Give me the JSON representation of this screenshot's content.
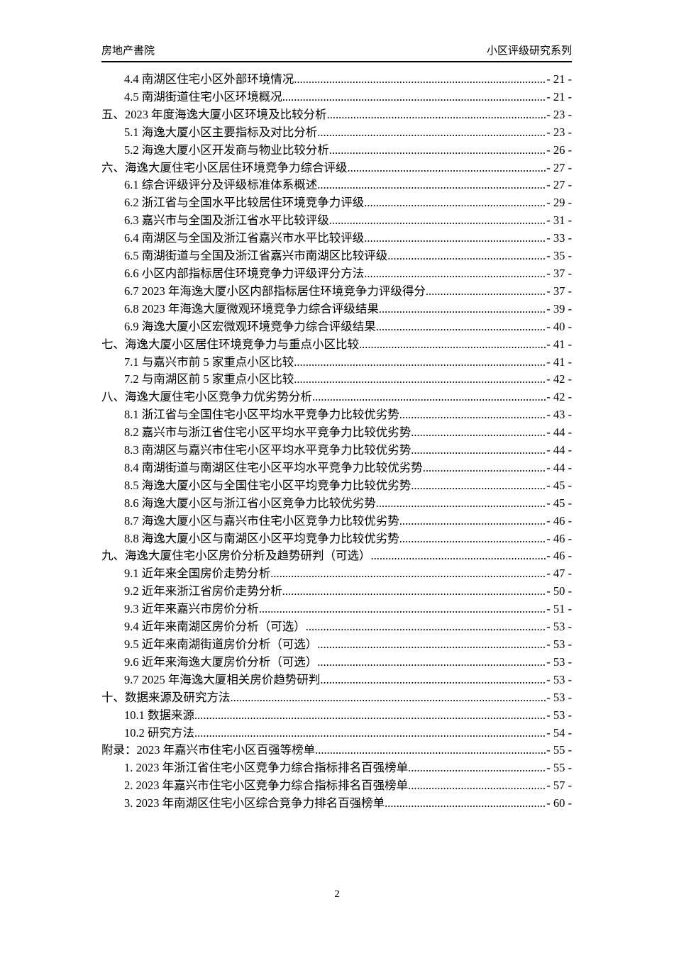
{
  "header": {
    "left_title": "房地产書院",
    "right_title": "小区评级研究系列"
  },
  "toc": {
    "entries": [
      {
        "level": 2,
        "title": "4.4 南湖区住宅小区外部环境情况",
        "page_label": "- 21 -"
      },
      {
        "level": 2,
        "title": "4.5 南湖街道住宅小区环境概况",
        "page_label": "- 21 -"
      },
      {
        "level": 1,
        "title": "五、2023 年度海逸大厦小区环境及比较分析",
        "page_label": "- 23 -"
      },
      {
        "level": 2,
        "title": "5.1 海逸大厦小区主要指标及对比分析",
        "page_label": "- 23 -"
      },
      {
        "level": 2,
        "title": "5.2 海逸大厦小区开发商与物业比较分析",
        "page_label": "- 26 -"
      },
      {
        "level": 1,
        "title": "六、海逸大厦住宅小区居住环境竞争力综合评级",
        "page_label": "- 27 -"
      },
      {
        "level": 2,
        "title": "6.1 综合评级评分及评级标准体系概述",
        "page_label": "- 27 -"
      },
      {
        "level": 2,
        "title": "6.2 浙江省与全国水平比较居住环境竞争力评级",
        "page_label": "- 29 -"
      },
      {
        "level": 2,
        "title": "6.3 嘉兴市与全国及浙江省水平比较评级",
        "page_label": "- 31 -"
      },
      {
        "level": 2,
        "title": "6.4 南湖区与全国及浙江省嘉兴市水平比较评级",
        "page_label": "- 33 -"
      },
      {
        "level": 2,
        "title": "6.5 南湖街道与全国及浙江省嘉兴市南湖区比较评级",
        "page_label": "- 35 -"
      },
      {
        "level": 2,
        "title": "6.6 小区内部指标居住环境竞争力评级评分方法",
        "page_label": "- 37 -"
      },
      {
        "level": 2,
        "title": "6.7 2023 年海逸大厦小区内部指标居住环境竞争力评级得分",
        "page_label": "- 37 -"
      },
      {
        "level": 2,
        "title": "6.8 2023 年海逸大厦微观环境竞争力综合评级结果",
        "page_label": "- 39 -"
      },
      {
        "level": 2,
        "title": "6.9 海逸大厦小区宏微观环境竞争力综合评级结果",
        "page_label": "- 40 -"
      },
      {
        "level": 1,
        "title": "七、海逸大厦小区居住环境竞争力与重点小区比较",
        "page_label": "- 41 -"
      },
      {
        "level": 2,
        "title": "7.1 与嘉兴市前 5 家重点小区比较",
        "page_label": "- 41 -"
      },
      {
        "level": 2,
        "title": "7.2 与南湖区前 5 家重点小区比较",
        "page_label": "- 42 -"
      },
      {
        "level": 1,
        "title": "八、海逸大厦住宅小区竞争力优劣势分析",
        "page_label": "- 42 -"
      },
      {
        "level": 2,
        "title": "8.1 浙江省与全国住宅小区平均水平竞争力比较优劣势",
        "page_label": "- 43 -"
      },
      {
        "level": 2,
        "title": "8.2 嘉兴市与浙江省住宅小区平均水平竞争力比较优劣势",
        "page_label": "- 44 -"
      },
      {
        "level": 2,
        "title": "8.3 南湖区与嘉兴市住宅小区平均水平竞争力比较优劣势",
        "page_label": "- 44 -"
      },
      {
        "level": 2,
        "title": "8.4 南湖街道与南湖区住宅小区平均水平竞争力比较优劣势",
        "page_label": "- 44 -"
      },
      {
        "level": 2,
        "title": "8.5 海逸大厦小区与全国住宅小区平均竞争力比较优劣势",
        "page_label": "- 45 -"
      },
      {
        "level": 2,
        "title": "8.6 海逸大厦小区与浙江省小区竞争力比较优劣势",
        "page_label": "- 45 -"
      },
      {
        "level": 2,
        "title": "8.7 海逸大厦小区与嘉兴市住宅小区竞争力比较优劣势",
        "page_label": "- 46 -"
      },
      {
        "level": 2,
        "title": "8.8 海逸大厦小区与南湖区小区平均竞争力比较优劣势",
        "page_label": "- 46 -"
      },
      {
        "level": 1,
        "title": "九、海逸大厦住宅小区房价分析及趋势研判（可选）",
        "page_label": "- 46 -"
      },
      {
        "level": 2,
        "title": "9.1 近年来全国房价走势分析",
        "page_label": "- 47 -"
      },
      {
        "level": 2,
        "title": "9.2 近年来浙江省房价走势分析",
        "page_label": "- 50 -"
      },
      {
        "level": 2,
        "title": "9.3 近年来嘉兴市房价分析",
        "page_label": "- 51 -"
      },
      {
        "level": 2,
        "title": "9.4 近年来南湖区房价分析（可选）",
        "page_label": "- 53 -"
      },
      {
        "level": 2,
        "title": "9.5 近年来南湖街道房价分析（可选）",
        "page_label": "- 53 -"
      },
      {
        "level": 2,
        "title": "9.6 近年来海逸大厦房价分析（可选）",
        "page_label": "- 53 -"
      },
      {
        "level": 2,
        "title": "9.7 2025 年海逸大厦相关房价趋势研判",
        "page_label": "- 53 -"
      },
      {
        "level": 1,
        "title": "十、数据来源及研究方法",
        "page_label": "- 53 -"
      },
      {
        "level": 2,
        "title": "10.1 数据来源",
        "page_label": "- 53 -"
      },
      {
        "level": 2,
        "title": "10.2 研究方法",
        "page_label": "- 54 -"
      },
      {
        "level": 1,
        "title": "附录：2023 年嘉兴市住宅小区百强等榜单",
        "page_label": "- 55 -"
      },
      {
        "level": 2,
        "title": "1. 2023 年浙江省住宅小区竞争力综合指标排名百强榜单",
        "page_label": "- 55 -"
      },
      {
        "level": 2,
        "title": "2. 2023 年嘉兴市住宅小区竞争力综合指标排名百强榜单",
        "page_label": "- 57 -"
      },
      {
        "level": 2,
        "title": "3. 2023 年南湖区住宅小区综合竞争力排名百强榜单",
        "page_label": "- 60 -"
      }
    ]
  },
  "footer": {
    "page_number": "2"
  }
}
